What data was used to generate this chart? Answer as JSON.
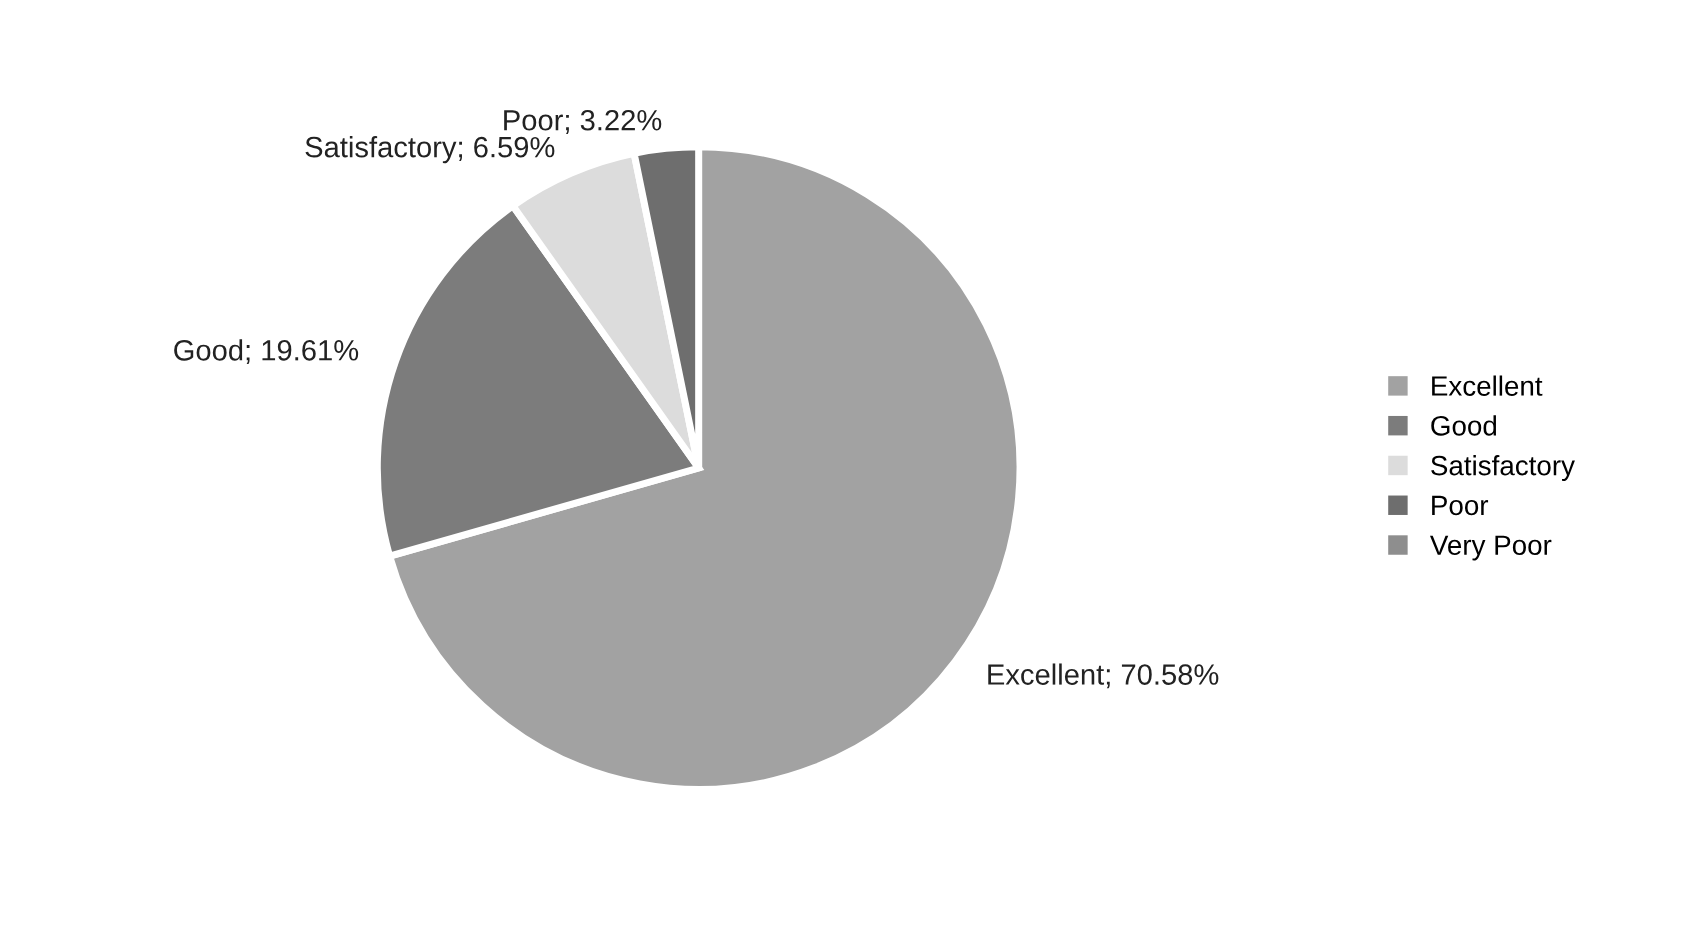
{
  "chart_data": {
    "type": "pie",
    "categories": [
      "Excellent",
      "Good",
      "Satisfactory",
      "Poor",
      "Very Poor"
    ],
    "values": [
      70.58,
      19.61,
      6.59,
      3.22,
      0
    ],
    "value_labels": [
      "Excellent; 70.58%",
      "Good; 19.61%",
      "Satisfactory; 6.59%",
      "Poor; 3.22%",
      null
    ],
    "colors": [
      "#a2a2a2",
      "#7c7c7c",
      "#dcdcdc",
      "#6e6e6e",
      "#8e8e8e"
    ],
    "legend": "right"
  }
}
